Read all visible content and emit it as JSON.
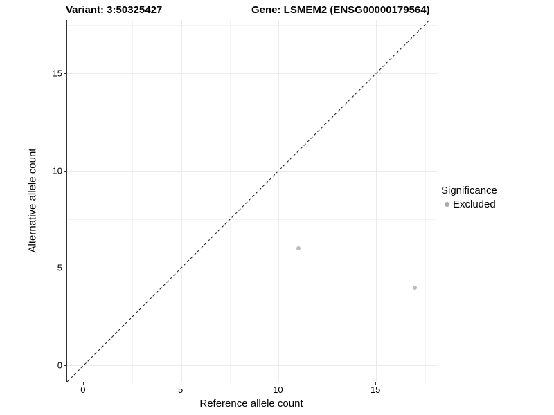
{
  "chart_data": {
    "type": "scatter",
    "title_left": "Variant: 3:50325427",
    "title_right": "Gene: LSMEM2 (ENSG00000179564)",
    "xlabel": "Reference allele count",
    "ylabel": "Alternative allele count",
    "x_ticks": [
      0,
      5,
      10,
      15
    ],
    "y_ticks": [
      0,
      5,
      10,
      15
    ],
    "x_minor_ticks": [
      2.5,
      7.5,
      12.5,
      17.5
    ],
    "y_minor_ticks": [
      2.5,
      7.5,
      12.5,
      17.5
    ],
    "xlim": [
      -0.85,
      18.12
    ],
    "ylim": [
      -0.85,
      17.74
    ],
    "grid": true,
    "reference_line": {
      "type": "identity",
      "style": "dashed"
    },
    "series": [
      {
        "name": "Excluded",
        "color": "#bdbdbd",
        "points": [
          [
            11,
            6
          ],
          [
            17,
            4
          ]
        ]
      }
    ],
    "legend": {
      "position": "right",
      "title": "Significance",
      "entries": [
        {
          "label": "Excluded",
          "color": "#a8a8a8"
        }
      ]
    },
    "colors": {
      "grid_major": "#ebebeb",
      "grid_minor": "#f4f4f4",
      "axis_line": "#333333",
      "dashed_line": "#1a1a1a",
      "text": "#000000"
    }
  }
}
